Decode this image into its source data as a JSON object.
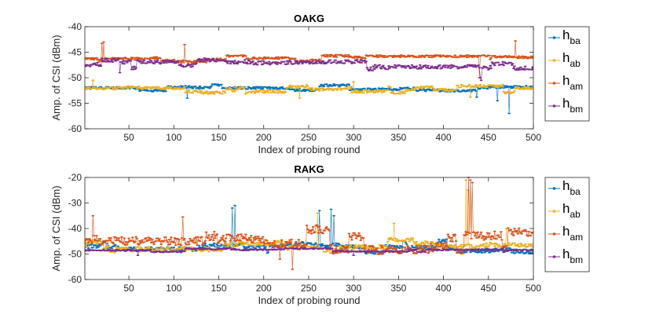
{
  "colors": {
    "ba": "#0072BD",
    "ab": "#EDB120",
    "am": "#D95319",
    "bm": "#7E2F8E"
  },
  "chart_data": [
    {
      "type": "line",
      "title": "OAKG",
      "xlabel": "Index of probing round",
      "ylabel": "Amp. of CSI (dBm)",
      "xlim": [
        1,
        500
      ],
      "ylim": [
        -60,
        -40
      ],
      "xticks": [
        50,
        100,
        150,
        200,
        250,
        300,
        350,
        400,
        450,
        500
      ],
      "xtick_labels": [
        "50",
        "100",
        "150",
        "200",
        "250",
        "300",
        "350",
        "400",
        "450",
        "500"
      ],
      "yticks": [
        -60,
        -55,
        -50,
        -45,
        -40
      ],
      "ytick_labels": [
        "-60",
        "-55",
        "-50",
        "-45",
        "-40"
      ],
      "legend_position": "outside-right",
      "series": [
        {
          "key": "ba",
          "name": "h",
          "sub": "ba",
          "color": "#0072BD",
          "base": -52.0,
          "noise": 0.5,
          "spikes": [
            [
              473,
              -57.0
            ],
            [
              460,
              -54.5
            ],
            [
              115,
              -54.0
            ],
            [
              437,
              -53.8
            ]
          ]
        },
        {
          "key": "ab",
          "name": "h",
          "sub": "ab",
          "color": "#EDB120",
          "base": -52.2,
          "noise": 0.6,
          "spikes": [
            [
              10,
              -50.5
            ],
            [
              300,
              -50.8
            ],
            [
              240,
              -54.0
            ],
            [
              430,
              -53.8
            ]
          ]
        },
        {
          "key": "am",
          "name": "h",
          "sub": "am",
          "color": "#D95319",
          "base": -46.3,
          "noise": 0.5,
          "spikes": [
            [
              20,
              -43.3
            ],
            [
              22,
              -43.0
            ],
            [
              112,
              -43.5
            ],
            [
              480,
              -42.8
            ],
            [
              440,
              -50.0
            ]
          ]
        },
        {
          "key": "bm",
          "name": "h",
          "sub": "bm",
          "color": "#7E2F8E",
          "base": -47.4,
          "noise": 0.8,
          "spikes": [
            [
              40,
              -49.0
            ],
            [
              442,
              -50.5
            ],
            [
              441,
              -50.0
            ]
          ]
        }
      ]
    },
    {
      "type": "line",
      "title": "RAKG",
      "xlabel": "Index of probing round",
      "ylabel": "Amp. of CSI (dBm)",
      "xlim": [
        1,
        500
      ],
      "ylim": [
        -60,
        -20
      ],
      "xticks": [
        50,
        100,
        150,
        200,
        250,
        300,
        350,
        400,
        450,
        500
      ],
      "xtick_labels": [
        "50",
        "100",
        "150",
        "200",
        "250",
        "300",
        "350",
        "400",
        "450",
        "500"
      ],
      "yticks": [
        -60,
        -50,
        -40,
        -30,
        -20
      ],
      "ytick_labels": [
        "-60",
        "-50",
        "-40",
        "-30",
        "-20"
      ],
      "legend_position": "outside-right",
      "series": [
        {
          "key": "ba",
          "name": "h",
          "sub": "ba",
          "color": "#0072BD",
          "base": -47.0,
          "noise": 1.8,
          "spikes": [
            [
              165,
              -32.0
            ],
            [
              168,
              -31.0
            ],
            [
              262,
              -33.0
            ],
            [
              275,
              -32.5
            ],
            [
              278,
              -35.0
            ]
          ]
        },
        {
          "key": "ab",
          "name": "h",
          "sub": "ab",
          "color": "#EDB120",
          "base": -46.5,
          "noise": 2.0,
          "spikes": [
            [
              425,
              -21.0
            ],
            [
              427,
              -25.0
            ],
            [
              260,
              -34.0
            ],
            [
              345,
              -38.0
            ],
            [
              470,
              -40.0
            ]
          ]
        },
        {
          "key": "am",
          "name": "h",
          "sub": "am",
          "color": "#D95319",
          "base": -44.5,
          "noise": 3.5,
          "spikes": [
            [
              428,
              -20.0
            ],
            [
              430,
              -21.0
            ],
            [
              432,
              -22.0
            ],
            [
              10,
              -35.0
            ],
            [
              110,
              -35.5
            ],
            [
              232,
              -56.0
            ],
            [
              218,
              -52.0
            ]
          ]
        },
        {
          "key": "bm",
          "name": "h",
          "sub": "bm",
          "color": "#7E2F8E",
          "base": -48.5,
          "noise": 0.6,
          "spikes": [
            [
              60,
              -50.5
            ],
            [
              300,
              -50.5
            ]
          ]
        }
      ]
    }
  ]
}
